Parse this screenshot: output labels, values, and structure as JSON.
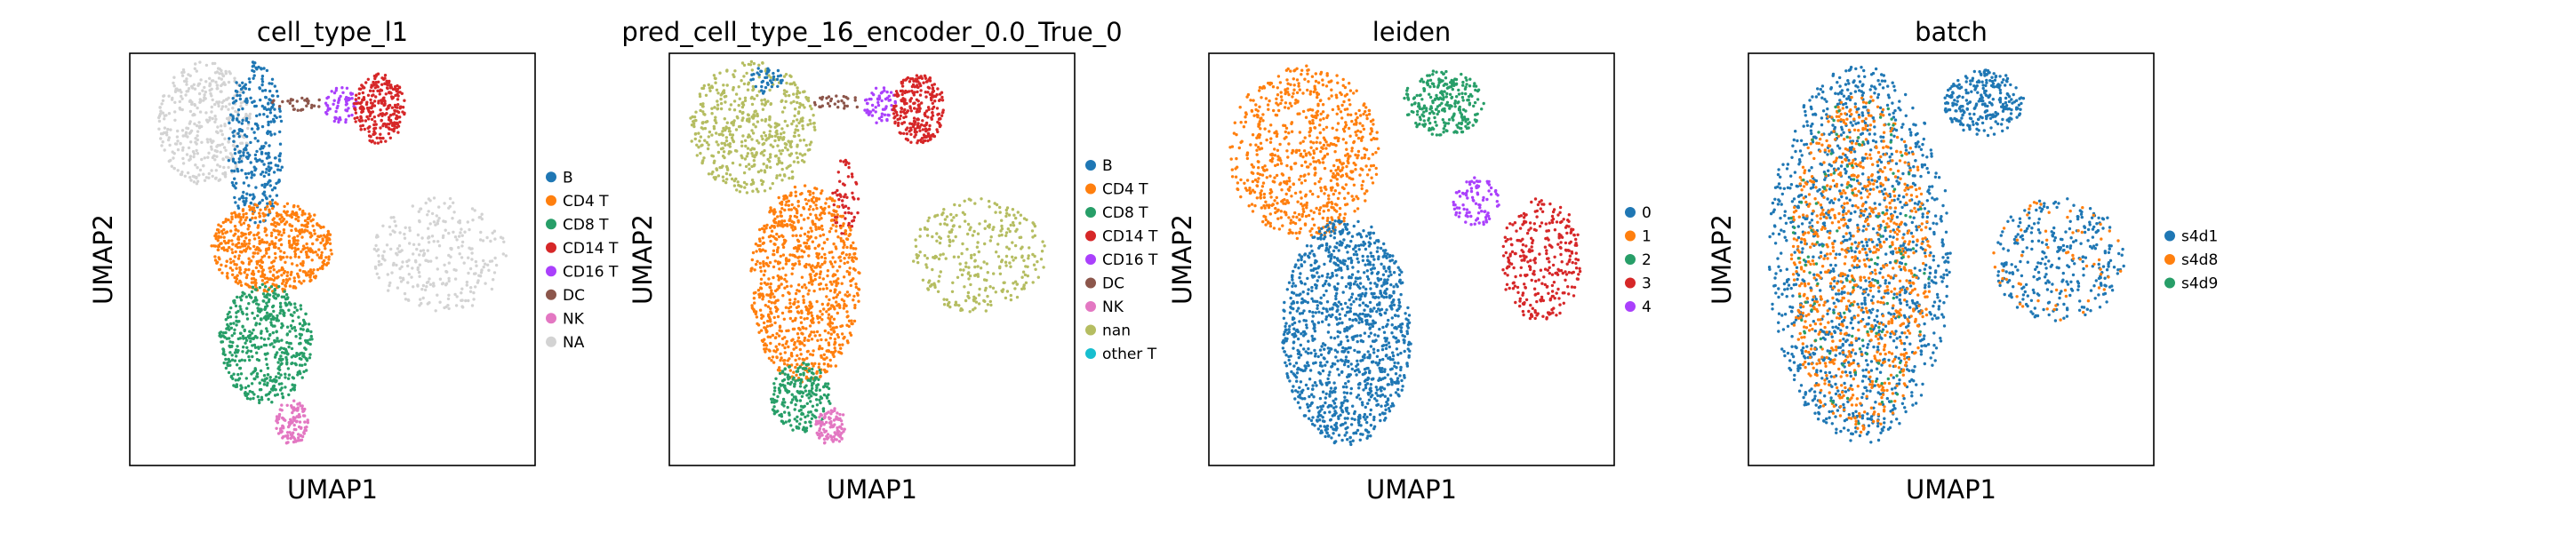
{
  "chart_data": [
    {
      "type": "scatter",
      "title": "cell_type_l1",
      "xlabel": "UMAP1",
      "ylabel": "UMAP2",
      "xticks": [],
      "yticks": [],
      "grid": false,
      "legend_position": "right",
      "categories": [
        {
          "name": "B",
          "color": "#1f77b4"
        },
        {
          "name": "CD4 T",
          "color": "#ff7f0e"
        },
        {
          "name": "CD8 T",
          "color": "#279e68"
        },
        {
          "name": "CD14 T",
          "color": "#d62728"
        },
        {
          "name": "CD16 T",
          "color": "#aa40fc"
        },
        {
          "name": "DC",
          "color": "#8c564b"
        },
        {
          "name": "NK",
          "color": "#e377c2"
        },
        {
          "name": "NA",
          "color": "#d3d3d3"
        }
      ],
      "regions": [
        {
          "category": "NA",
          "x": [
            0.07,
            0.3
          ],
          "y": [
            0.68,
            0.98
          ],
          "density": 380
        },
        {
          "category": "B",
          "x": [
            0.24,
            0.38
          ],
          "y": [
            0.58,
            0.98
          ],
          "density": 320
        },
        {
          "category": "DC",
          "x": [
            0.35,
            0.48
          ],
          "y": [
            0.86,
            0.9
          ],
          "density": 30
        },
        {
          "category": "CD16 T",
          "x": [
            0.48,
            0.56
          ],
          "y": [
            0.83,
            0.92
          ],
          "density": 60
        },
        {
          "category": "CD14 T",
          "x": [
            0.55,
            0.68
          ],
          "y": [
            0.78,
            0.95
          ],
          "density": 260
        },
        {
          "category": "NA",
          "x": [
            0.6,
            0.93
          ],
          "y": [
            0.37,
            0.65
          ],
          "density": 280
        },
        {
          "category": "CD4 T",
          "x": [
            0.2,
            0.5
          ],
          "y": [
            0.42,
            0.64
          ],
          "density": 600
        },
        {
          "category": "CD8 T",
          "x": [
            0.22,
            0.45
          ],
          "y": [
            0.15,
            0.44
          ],
          "density": 520
        },
        {
          "category": "NK",
          "x": [
            0.36,
            0.44
          ],
          "y": [
            0.05,
            0.16
          ],
          "density": 120
        }
      ]
    },
    {
      "type": "scatter",
      "title": "pred_cell_type_16_encoder_0.0_True_0",
      "xlabel": "UMAP1",
      "ylabel": "UMAP2",
      "xticks": [],
      "yticks": [],
      "grid": false,
      "legend_position": "right",
      "categories": [
        {
          "name": "B",
          "color": "#1f77b4"
        },
        {
          "name": "CD4 T",
          "color": "#ff7f0e"
        },
        {
          "name": "CD8 T",
          "color": "#279e68"
        },
        {
          "name": "CD14 T",
          "color": "#d62728"
        },
        {
          "name": "CD16 T",
          "color": "#aa40fc"
        },
        {
          "name": "DC",
          "color": "#8c564b"
        },
        {
          "name": "NK",
          "color": "#e377c2"
        },
        {
          "name": "nan",
          "color": "#b5bd61"
        },
        {
          "name": "other T",
          "color": "#17becf"
        }
      ],
      "regions": [
        {
          "category": "nan",
          "x": [
            0.05,
            0.36
          ],
          "y": [
            0.66,
            0.98
          ],
          "density": 520
        },
        {
          "category": "B",
          "x": [
            0.2,
            0.28
          ],
          "y": [
            0.9,
            0.97
          ],
          "density": 40
        },
        {
          "category": "DC",
          "x": [
            0.35,
            0.48
          ],
          "y": [
            0.86,
            0.9
          ],
          "density": 30
        },
        {
          "category": "CD16 T",
          "x": [
            0.48,
            0.56
          ],
          "y": [
            0.83,
            0.92
          ],
          "density": 60
        },
        {
          "category": "CD14 T",
          "x": [
            0.55,
            0.68
          ],
          "y": [
            0.78,
            0.95
          ],
          "density": 260
        },
        {
          "category": "CD14 T",
          "x": [
            0.4,
            0.47
          ],
          "y": [
            0.55,
            0.75
          ],
          "density": 60
        },
        {
          "category": "nan",
          "x": [
            0.6,
            0.93
          ],
          "y": [
            0.37,
            0.65
          ],
          "density": 300
        },
        {
          "category": "CD4 T",
          "x": [
            0.2,
            0.47
          ],
          "y": [
            0.2,
            0.68
          ],
          "density": 900
        },
        {
          "category": "CD8 T",
          "x": [
            0.25,
            0.4
          ],
          "y": [
            0.08,
            0.25
          ],
          "density": 220
        },
        {
          "category": "NK",
          "x": [
            0.36,
            0.44
          ],
          "y": [
            0.05,
            0.14
          ],
          "density": 100
        }
      ]
    },
    {
      "type": "scatter",
      "title": "leiden",
      "xlabel": "UMAP1",
      "ylabel": "UMAP2",
      "xticks": [],
      "yticks": [],
      "grid": false,
      "legend_position": "right",
      "categories": [
        {
          "name": "0",
          "color": "#1f77b4"
        },
        {
          "name": "1",
          "color": "#ff7f0e"
        },
        {
          "name": "2",
          "color": "#279e68"
        },
        {
          "name": "3",
          "color": "#d62728"
        },
        {
          "name": "4",
          "color": "#aa40fc"
        }
      ],
      "regions": [
        {
          "category": "1",
          "x": [
            0.05,
            0.42
          ],
          "y": [
            0.55,
            0.97
          ],
          "density": 750
        },
        {
          "category": "2",
          "x": [
            0.48,
            0.68
          ],
          "y": [
            0.8,
            0.96
          ],
          "density": 260
        },
        {
          "category": "4",
          "x": [
            0.6,
            0.72
          ],
          "y": [
            0.58,
            0.7
          ],
          "density": 90
        },
        {
          "category": "3",
          "x": [
            0.72,
            0.92
          ],
          "y": [
            0.35,
            0.65
          ],
          "density": 300
        },
        {
          "category": "0",
          "x": [
            0.18,
            0.5
          ],
          "y": [
            0.05,
            0.6
          ],
          "density": 1200
        }
      ]
    },
    {
      "type": "scatter",
      "title": "batch",
      "xlabel": "UMAP1",
      "ylabel": "UMAP2",
      "xticks": [],
      "yticks": [],
      "grid": false,
      "legend_position": "right",
      "categories": [
        {
          "name": "s4d1",
          "color": "#1f77b4"
        },
        {
          "name": "s4d8",
          "color": "#ff7f0e"
        },
        {
          "name": "s4d9",
          "color": "#279e68"
        }
      ],
      "regions": [
        {
          "category": "s4d1",
          "x": [
            0.05,
            0.5
          ],
          "y": [
            0.05,
            0.97
          ],
          "density": 1300
        },
        {
          "category": "s4d8",
          "x": [
            0.1,
            0.45
          ],
          "y": [
            0.08,
            0.9
          ],
          "density": 900
        },
        {
          "category": "s4d9",
          "x": [
            0.1,
            0.45
          ],
          "y": [
            0.1,
            0.9
          ],
          "density": 120
        },
        {
          "category": "s4d1",
          "x": [
            0.48,
            0.68
          ],
          "y": [
            0.8,
            0.96
          ],
          "density": 260
        },
        {
          "category": "s4d1",
          "x": [
            0.6,
            0.93
          ],
          "y": [
            0.35,
            0.65
          ],
          "density": 300
        },
        {
          "category": "s4d8",
          "x": [
            0.6,
            0.93
          ],
          "y": [
            0.35,
            0.65
          ],
          "density": 60
        }
      ]
    }
  ]
}
